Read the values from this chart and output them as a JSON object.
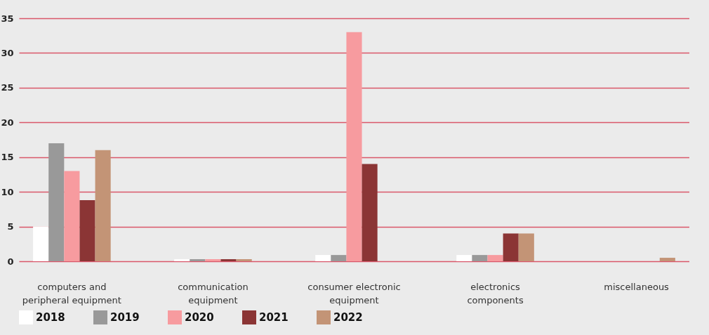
{
  "chart_data": {
    "type": "bar",
    "categories": [
      "computers and\nperipheral equipment",
      "communication\nequipment",
      "consumer electronic\nequipment",
      "electronics\ncomponents",
      "miscellaneous"
    ],
    "series": [
      {
        "name": "2018",
        "color": "#ffffff",
        "values": [
          5,
          0.3,
          0.9,
          0.9,
          0
        ]
      },
      {
        "name": "2019",
        "color": "#999999",
        "values": [
          17,
          0.3,
          0.9,
          0.9,
          0
        ]
      },
      {
        "name": "2020",
        "color": "#f79b9f",
        "values": [
          13,
          0.3,
          33,
          0.9,
          0
        ]
      },
      {
        "name": "2021",
        "color": "#8b3535",
        "values": [
          8.8,
          0.3,
          14,
          4,
          0
        ]
      },
      {
        "name": "2022",
        "color": "#c39476",
        "values": [
          16,
          0.3,
          0,
          4,
          0.5
        ]
      }
    ],
    "ylim": [
      0,
      35
    ],
    "yticks": [
      0,
      5,
      10,
      15,
      20,
      25,
      30,
      35
    ],
    "grid": "y",
    "legend": "bottom"
  }
}
